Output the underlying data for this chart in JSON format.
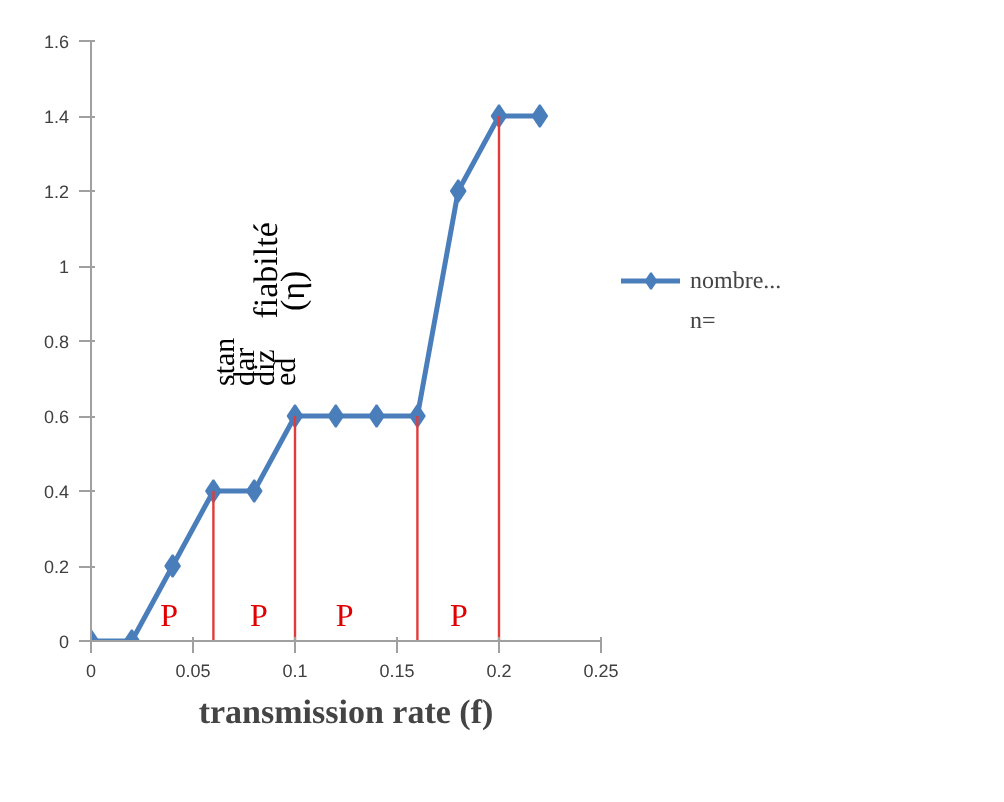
{
  "chart_data": {
    "type": "line",
    "xlabel": "transmission rate (f)",
    "xlim": [
      0,
      0.25
    ],
    "ylim": [
      0,
      1.6
    ],
    "xticks": [
      0,
      0.05,
      0.1,
      0.15,
      0.2,
      0.25
    ],
    "yticks": [
      0,
      0.2,
      0.4,
      0.6,
      0.8,
      1,
      1.2,
      1.4,
      1.6
    ],
    "grid": false,
    "legend": "right",
    "marker": "diamond",
    "line_style": "solid",
    "series": [
      {
        "name": "nombre...",
        "color": "#4a7ebb",
        "x": [
          0,
          0.02,
          0.04,
          0.06,
          0.08,
          0.1,
          0.12,
          0.14,
          0.16,
          0.18,
          0.2,
          0.22
        ],
        "values": [
          0,
          0,
          0.2,
          0.4,
          0.4,
          0.6,
          0.6,
          0.6,
          0.6,
          1.2,
          1.4,
          1.4
        ]
      },
      {
        "color": "#e03c3c",
        "marker": "none",
        "x": [
          0.06,
          0.06
        ],
        "values": [
          0,
          0.4
        ]
      },
      {
        "color": "#e03c3c",
        "marker": "none",
        "x": [
          0.1,
          0.1
        ],
        "values": [
          0,
          0.6
        ]
      },
      {
        "color": "#e03c3c",
        "marker": "none",
        "x": [
          0.16,
          0.16
        ],
        "values": [
          0,
          0.6
        ]
      },
      {
        "color": "#e03c3c",
        "marker": "none",
        "x": [
          0.2,
          0.2
        ],
        "values": [
          0,
          1.4
        ]
      }
    ],
    "annotations": [
      "stan",
      "dar",
      "diz",
      "ed",
      "fiabilté",
      "(η)",
      "P",
      "P",
      "P",
      "P",
      "n="
    ]
  }
}
